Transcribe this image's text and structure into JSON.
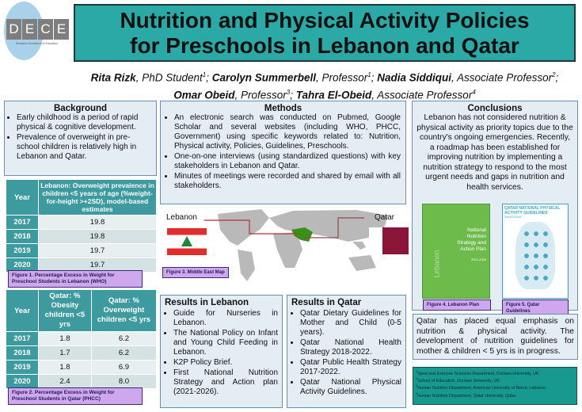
{
  "logo": {
    "text": "DECE",
    "tagline": "Research Excellence in Education"
  },
  "title": {
    "line1": "Nutrition and Physical Activity Policies",
    "line2": "for Preschools in Lebanon and Qatar"
  },
  "authors": {
    "line1": [
      {
        "name": "Rita Rizk",
        "role": ", PhD Student",
        "sup": "1",
        "sep": "; "
      },
      {
        "name": "Carolyn Summerbell",
        "role": ", Professor",
        "sup": "1",
        "sep": "; "
      },
      {
        "name": "Nadia Siddiqui",
        "role": ", Associate Professor",
        "sup": "2",
        "sep": ";"
      }
    ],
    "line2": [
      {
        "name": "Omar Obeid",
        "role": ", Professor",
        "sup": "3",
        "sep": "; "
      },
      {
        "name": "Tahra El-Obeid",
        "role": ", Associate Professor",
        "sup": "4",
        "sep": ""
      }
    ]
  },
  "background": {
    "heading": "Background",
    "items": [
      "Early childhood is a period of rapid physical & cognitive development.",
      "Prevalence of overweight in pre-school children is relatively high in Lebanon and Qatar."
    ]
  },
  "table1": {
    "headers": [
      "Year",
      "Lebanon: Overweight prevalence in children <5 years of age (%weight-for-height >+2SD), model-based estimates"
    ],
    "rows": [
      [
        "2017",
        "19.8"
      ],
      [
        "2018",
        "19.8"
      ],
      [
        "2019",
        "19.7"
      ],
      [
        "2020",
        "19.7"
      ]
    ],
    "caption": "Figure 1. Percentage Excess in Weight for Preschool Students in Lebanon (WHO)"
  },
  "table2": {
    "headers": [
      "Year",
      "Qatar: % Obesity children <5 yrs",
      "Qatar: % Overweight children <5 yrs"
    ],
    "rows": [
      [
        "2017",
        "1.8",
        "6.2"
      ],
      [
        "2018",
        "1.7",
        "6.2"
      ],
      [
        "2019",
        "1.8",
        "6.9"
      ],
      [
        "2020",
        "2.4",
        "8.0"
      ]
    ],
    "caption": "Figure 2. Percentage Excess in Weight for Preschool Students in Qatar (PHCC)"
  },
  "methods": {
    "heading": "Methods",
    "items": [
      "An electronic search was conducted on Pubmed, Google Scholar and several websites (including WHO, PHCC, Government) using specific keywords related to: Nutrition, Physical activity, Policies, Guidelines, Preschools.",
      "One-on-one interviews (using standardized questions) with key stakeholders in Lebanon and Qatar.",
      "Minutes of meetings were recorded and shared by email with all stakeholders."
    ]
  },
  "map": {
    "label_left": "Lebanon",
    "label_right": "Qatar",
    "caption": "Figure 3. Middle East Map"
  },
  "results_lebanon": {
    "heading": "Results in Lebanon",
    "items": [
      "Guide for Nurseries in Lebanon.",
      "The National Policy on Infant and Young Child Feeding in Lebanon.",
      "K2P Policy Brief.",
      "First National Nutrition Strategy and Action plan (2021-2026)."
    ]
  },
  "results_qatar": {
    "heading": "Results in Qatar",
    "items": [
      "Qatar Dietary Guidelines for Mother and Child (0-5 years).",
      "Qatar National Health Strategy 2018-2022.",
      "Qatar Public Health Strategy 2017-2022.",
      "Qatar National Physical Activity Guidelines."
    ]
  },
  "conclusions": {
    "heading": "Conclusions",
    "text": "Lebanon has not considered nutrition & physical activity as priority topics due to the country's ongoing emergencies. Recently, a roadmap has been established for improving nutrition by implementing a nutrition strategy to respond to the most urgent needs and gaps in nutrition and health services."
  },
  "fig4": {
    "cover_title": "National Nutrition Strategy and Action Plan",
    "cover_side": "Lebanon",
    "cover_years": "2021-2026",
    "caption": "Figure 4. Lebanon Plan"
  },
  "fig5": {
    "cover_title": "QATAR NATIONAL PHYSICAL ACTIVITY GUIDELINES",
    "cover_edition": "2nd EDITION",
    "caption": "Figure 5. Qatar Guidelines"
  },
  "qatar_note": "Qatar has placed equal emphasis on nutrition & physical activity. The development of nutrition guidelines for mother & children < 5 yrs is in progress.",
  "affiliations": [
    {
      "sup": "1",
      "text": "Sport and Exercise Sciences Department, Durham University, UK"
    },
    {
      "sup": "2",
      "text": "School of Education, Durham University, UK"
    },
    {
      "sup": "3",
      "text": "Human Nutrition Department, American University of Beirut, Lebanon"
    },
    {
      "sup": "4",
      "text": "Human Nutrition Department, Qatar University, Qatar"
    }
  ],
  "colors": {
    "title_bg": "#2ba9a6",
    "box_bg": "#e4ecf4",
    "table_header": "#3d9a9f",
    "caption_bg": "#cfa7ef",
    "footnote_bg": "#17998f",
    "map_highlight": "#3a8f14"
  }
}
